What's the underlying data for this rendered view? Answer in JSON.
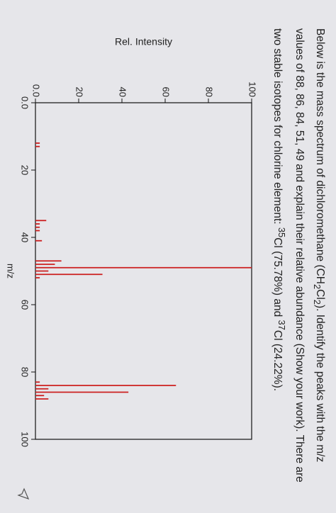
{
  "question": [
    "Below is the mass spectrum of dichloromethane (CH",
    "2",
    "Cl",
    "2",
    "). Identify the peaks with the m/z values of 88, 86, 84, 51, 49 and explain their relative abundance (Show your work). There are two stable isotopes for chlorine element: ",
    "35",
    "Cl (75.78%) and ",
    "37",
    "Cl (24.22%)."
  ],
  "chart_data": {
    "type": "stem",
    "x_label": "m/z",
    "y_label": "Rel. Intensity",
    "x": [
      12,
      13,
      35,
      36,
      37,
      38,
      41,
      47,
      48,
      49,
      50,
      51,
      52,
      83,
      84,
      85,
      86,
      87,
      88
    ],
    "values": [
      2,
      2,
      5,
      2,
      2,
      2,
      3,
      12,
      9,
      100,
      6,
      31,
      2,
      2,
      65,
      6,
      43,
      4,
      6
    ],
    "color": "#cc1f1f",
    "xlim": [
      0,
      100
    ],
    "xticks": [
      {
        "value": 0,
        "label": "0.0"
      },
      20,
      40,
      60,
      80,
      100
    ],
    "ylim": [
      0,
      100
    ],
    "yticks": [
      {
        "value": 0,
        "label": "0.0"
      },
      20,
      40,
      60,
      80,
      100
    ]
  }
}
